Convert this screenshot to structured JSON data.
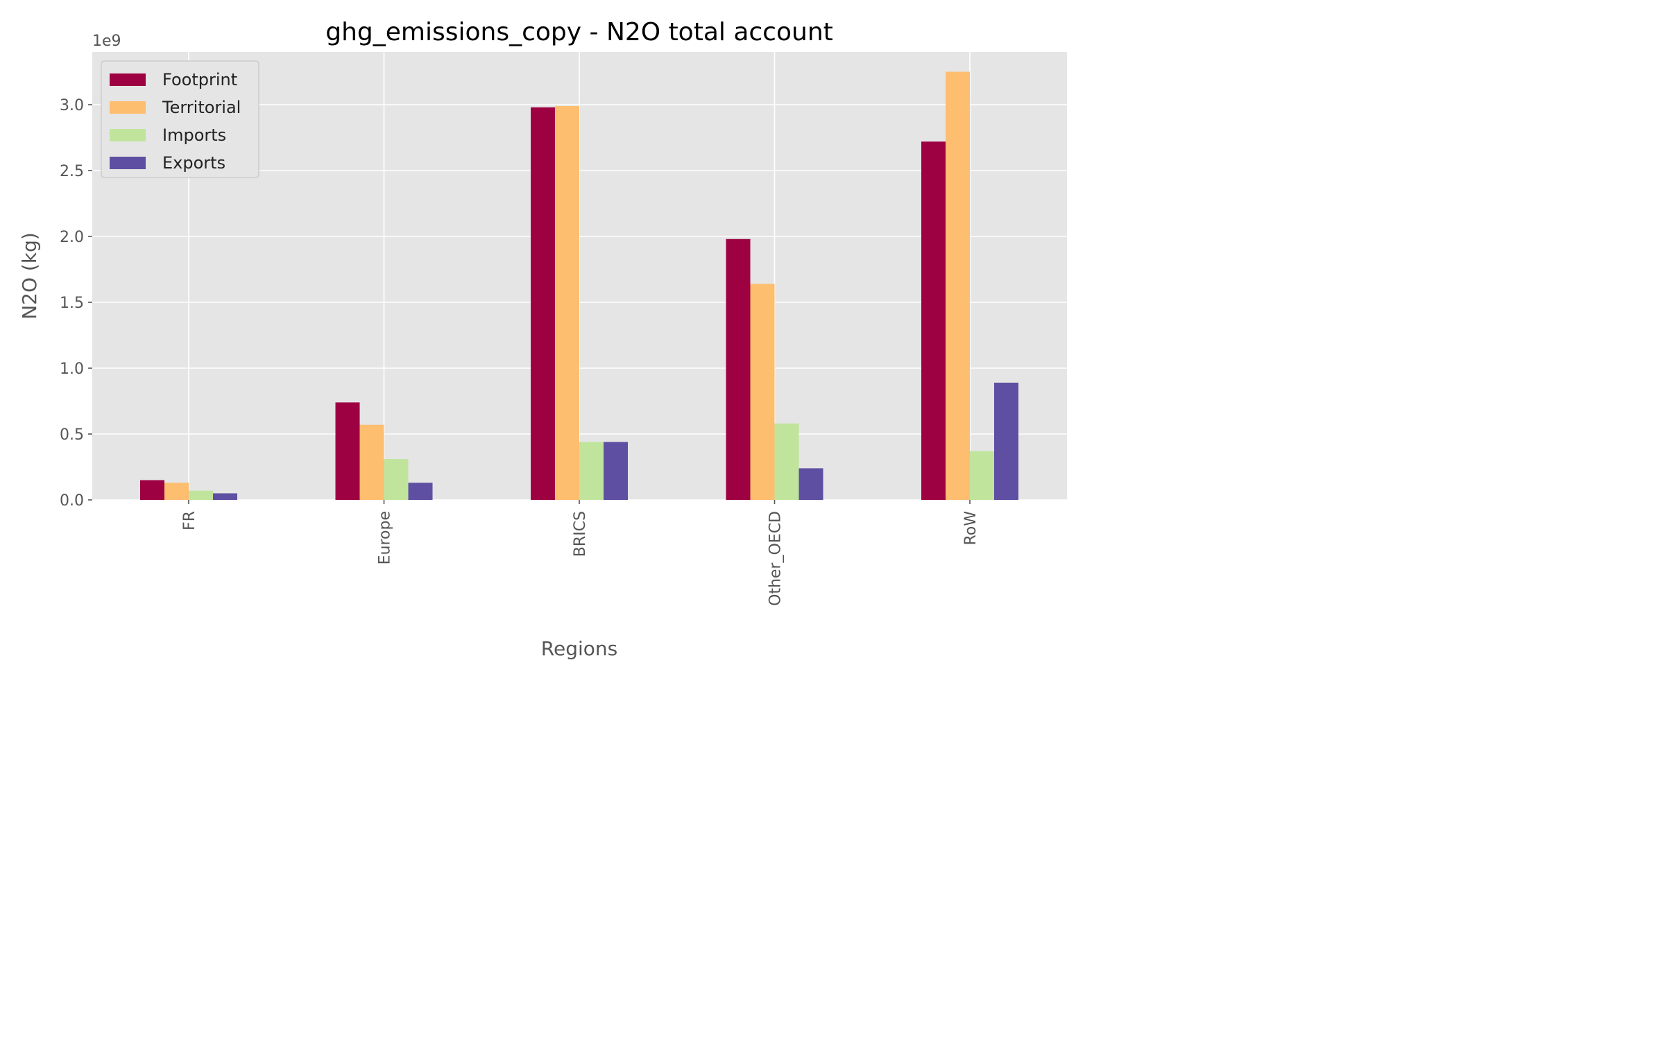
{
  "chart_data": {
    "type": "bar",
    "title": "ghg_emissions_copy - N2O total account",
    "xlabel": "Regions",
    "ylabel": "N2O (kg)",
    "y_offset_label": "1e9",
    "categories": [
      "FR",
      "Europe",
      "BRICS",
      "Other_OECD",
      "RoW"
    ],
    "series": [
      {
        "name": "Footprint",
        "color": "#9e0142",
        "values": [
          0.15,
          0.74,
          2.98,
          1.98,
          2.72
        ]
      },
      {
        "name": "Territorial",
        "color": "#fdbe6f",
        "values": [
          0.13,
          0.57,
          2.99,
          1.64,
          3.25
        ]
      },
      {
        "name": "Imports",
        "color": "#c1e49d",
        "values": [
          0.07,
          0.31,
          0.44,
          0.58,
          0.37
        ]
      },
      {
        "name": "Exports",
        "color": "#5e4fa2",
        "values": [
          0.05,
          0.13,
          0.44,
          0.24,
          0.89
        ]
      }
    ],
    "ylim": [
      0,
      3.4
    ],
    "yticks": [
      0.0,
      0.5,
      1.0,
      1.5,
      2.0,
      2.5,
      3.0
    ],
    "ytick_labels": [
      "0.0",
      "0.5",
      "1.0",
      "1.5",
      "2.0",
      "2.5",
      "3.0"
    ],
    "grid": true,
    "legend_position": "top-left",
    "background_color": "#e5e5e5",
    "grid_color": "#ffffff"
  }
}
